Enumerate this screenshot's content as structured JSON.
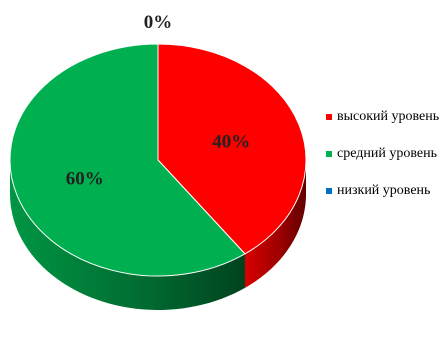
{
  "chart_data": {
    "type": "pie",
    "title": "",
    "categories": [
      "высокий уровень",
      "средний уровень",
      "низкий уровень"
    ],
    "values": [
      40,
      60,
      0
    ],
    "labels": [
      "40%",
      "60%",
      "0%"
    ],
    "colors": [
      "#ff0000",
      "#00b050",
      "#0070c0"
    ],
    "legend_position": "right",
    "style": "3d"
  }
}
